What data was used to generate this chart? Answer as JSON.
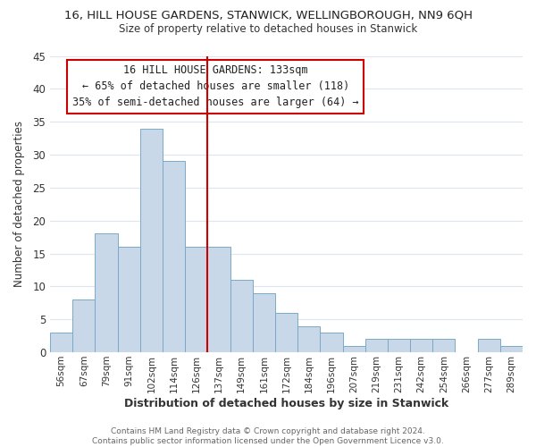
{
  "title": "16, HILL HOUSE GARDENS, STANWICK, WELLINGBOROUGH, NN9 6QH",
  "subtitle": "Size of property relative to detached houses in Stanwick",
  "xlabel": "Distribution of detached houses by size in Stanwick",
  "ylabel": "Number of detached properties",
  "bar_labels": [
    "56sqm",
    "67sqm",
    "79sqm",
    "91sqm",
    "102sqm",
    "114sqm",
    "126sqm",
    "137sqm",
    "149sqm",
    "161sqm",
    "172sqm",
    "184sqm",
    "196sqm",
    "207sqm",
    "219sqm",
    "231sqm",
    "242sqm",
    "254sqm",
    "266sqm",
    "277sqm",
    "289sqm"
  ],
  "bar_values": [
    3,
    8,
    18,
    16,
    34,
    29,
    16,
    16,
    11,
    9,
    6,
    4,
    3,
    1,
    2,
    2,
    2,
    2,
    0,
    2,
    1
  ],
  "bar_color": "#c8d8e8",
  "bar_edgecolor": "#7aaac8",
  "vline_x_index": 7,
  "vline_color": "#cc0000",
  "annotation_lines": [
    "16 HILL HOUSE GARDENS: 133sqm",
    "← 65% of detached houses are smaller (118)",
    "35% of semi-detached houses are larger (64) →"
  ],
  "annotation_box_color": "#ffffff",
  "annotation_box_edgecolor": "#cc0000",
  "ylim": [
    0,
    45
  ],
  "yticks": [
    0,
    5,
    10,
    15,
    20,
    25,
    30,
    35,
    40,
    45
  ],
  "footer_lines": [
    "Contains HM Land Registry data © Crown copyright and database right 2024.",
    "Contains public sector information licensed under the Open Government Licence v3.0."
  ],
  "background_color": "#ffffff",
  "grid_color": "#dde6ef"
}
